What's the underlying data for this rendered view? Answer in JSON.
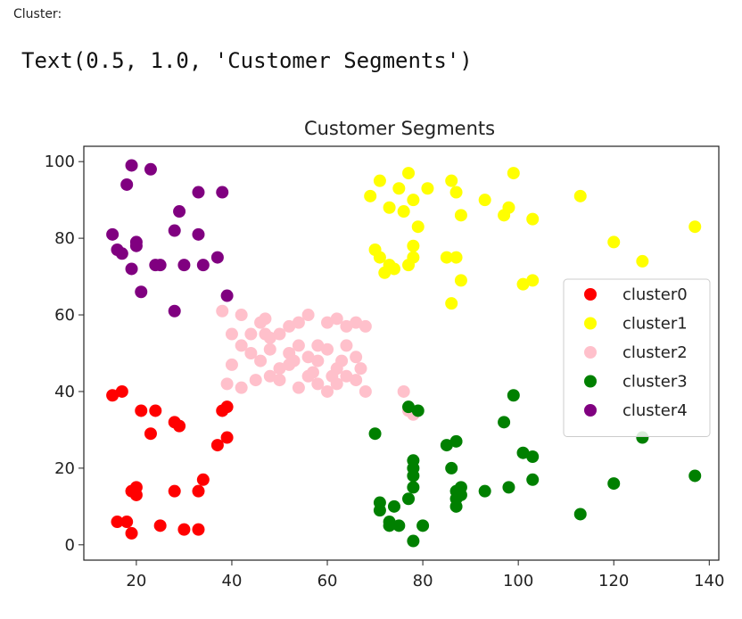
{
  "notebook": {
    "cell_label": "Cluster:",
    "output_text": "Text(0.5, 1.0, 'Customer Segments')"
  },
  "chart_data": {
    "type": "scatter",
    "title": "Customer Segments",
    "xlabel": "",
    "ylabel": "",
    "xlim": [
      9,
      142
    ],
    "ylim": [
      -4,
      104
    ],
    "xticks": [
      20,
      40,
      60,
      80,
      100,
      120,
      140
    ],
    "yticks": [
      0,
      20,
      40,
      60,
      80,
      100
    ],
    "grid": false,
    "legend_position": "right",
    "series": [
      {
        "name": "cluster0",
        "color": "#ff0000",
        "points": [
          [
            15,
            39
          ],
          [
            17,
            40
          ],
          [
            20,
            13
          ],
          [
            20,
            15
          ],
          [
            19,
            14
          ],
          [
            21,
            35
          ],
          [
            24,
            35
          ],
          [
            23,
            29
          ],
          [
            28,
            32
          ],
          [
            29,
            31
          ],
          [
            28,
            14
          ],
          [
            16,
            6
          ],
          [
            18,
            6
          ],
          [
            19,
            3
          ],
          [
            25,
            5
          ],
          [
            30,
            4
          ],
          [
            33,
            4
          ],
          [
            33,
            14
          ],
          [
            34,
            17
          ],
          [
            37,
            26
          ],
          [
            39,
            28
          ],
          [
            38,
            35
          ],
          [
            39,
            36
          ]
        ]
      },
      {
        "name": "cluster1",
        "color": "#ffff00",
        "points": [
          [
            69,
            91
          ],
          [
            71,
            95
          ],
          [
            73,
            88
          ],
          [
            75,
            93
          ],
          [
            77,
            97
          ],
          [
            76,
            87
          ],
          [
            78,
            90
          ],
          [
            79,
            83
          ],
          [
            81,
            93
          ],
          [
            86,
            95
          ],
          [
            87,
            92
          ],
          [
            88,
            86
          ],
          [
            93,
            90
          ],
          [
            97,
            86
          ],
          [
            98,
            88
          ],
          [
            99,
            97
          ],
          [
            103,
            85
          ],
          [
            113,
            91
          ],
          [
            70,
            77
          ],
          [
            71,
            75
          ],
          [
            72,
            71
          ],
          [
            73,
            73
          ],
          [
            74,
            72
          ],
          [
            77,
            73
          ],
          [
            78,
            75
          ],
          [
            78,
            78
          ],
          [
            85,
            75
          ],
          [
            87,
            75
          ],
          [
            86,
            63
          ],
          [
            88,
            69
          ],
          [
            101,
            68
          ],
          [
            103,
            69
          ],
          [
            120,
            79
          ],
          [
            126,
            74
          ],
          [
            137,
            83
          ]
        ]
      },
      {
        "name": "cluster2",
        "color": "#ffc0cb",
        "points": [
          [
            38,
            61
          ],
          [
            40,
            55
          ],
          [
            42,
            60
          ],
          [
            44,
            55
          ],
          [
            46,
            58
          ],
          [
            47,
            59
          ],
          [
            48,
            54
          ],
          [
            50,
            55
          ],
          [
            52,
            57
          ],
          [
            54,
            58
          ],
          [
            56,
            60
          ],
          [
            58,
            52
          ],
          [
            60,
            58
          ],
          [
            62,
            59
          ],
          [
            64,
            57
          ],
          [
            66,
            58
          ],
          [
            68,
            57
          ],
          [
            40,
            47
          ],
          [
            42,
            52
          ],
          [
            44,
            50
          ],
          [
            46,
            48
          ],
          [
            48,
            51
          ],
          [
            50,
            46
          ],
          [
            52,
            50
          ],
          [
            54,
            52
          ],
          [
            56,
            49
          ],
          [
            58,
            48
          ],
          [
            60,
            51
          ],
          [
            62,
            46
          ],
          [
            64,
            52
          ],
          [
            66,
            49
          ],
          [
            39,
            42
          ],
          [
            42,
            41
          ],
          [
            45,
            43
          ],
          [
            48,
            44
          ],
          [
            50,
            43
          ],
          [
            52,
            47
          ],
          [
            54,
            41
          ],
          [
            56,
            44
          ],
          [
            58,
            42
          ],
          [
            60,
            40
          ],
          [
            62,
            42
          ],
          [
            64,
            44
          ],
          [
            66,
            43
          ],
          [
            68,
            40
          ],
          [
            47,
            55
          ],
          [
            53,
            48
          ],
          [
            57,
            45
          ],
          [
            61,
            44
          ],
          [
            63,
            48
          ],
          [
            67,
            46
          ],
          [
            76,
            40
          ],
          [
            77,
            35
          ],
          [
            78,
            34
          ]
        ]
      },
      {
        "name": "cluster3",
        "color": "#008000",
        "points": [
          [
            77,
            36
          ],
          [
            79,
            35
          ],
          [
            70,
            29
          ],
          [
            71,
            11
          ],
          [
            71,
            9
          ],
          [
            73,
            6
          ],
          [
            74,
            10
          ],
          [
            73,
            5
          ],
          [
            75,
            5
          ],
          [
            77,
            12
          ],
          [
            78,
            15
          ],
          [
            78,
            20
          ],
          [
            78,
            22
          ],
          [
            78,
            18
          ],
          [
            78,
            1
          ],
          [
            80,
            5
          ],
          [
            85,
            26
          ],
          [
            87,
            27
          ],
          [
            86,
            20
          ],
          [
            87,
            14
          ],
          [
            87,
            12
          ],
          [
            88,
            15
          ],
          [
            87,
            10
          ],
          [
            88,
            13
          ],
          [
            93,
            14
          ],
          [
            97,
            32
          ],
          [
            98,
            15
          ],
          [
            99,
            39
          ],
          [
            101,
            24
          ],
          [
            103,
            17
          ],
          [
            103,
            23
          ],
          [
            113,
            8
          ],
          [
            120,
            16
          ],
          [
            126,
            28
          ],
          [
            137,
            18
          ]
        ]
      },
      {
        "name": "cluster4",
        "color": "#800080",
        "points": [
          [
            15,
            81
          ],
          [
            16,
            77
          ],
          [
            17,
            76
          ],
          [
            18,
            94
          ],
          [
            19,
            99
          ],
          [
            19,
            72
          ],
          [
            20,
            79
          ],
          [
            20,
            78
          ],
          [
            21,
            66
          ],
          [
            23,
            98
          ],
          [
            24,
            73
          ],
          [
            25,
            73
          ],
          [
            28,
            82
          ],
          [
            28,
            61
          ],
          [
            29,
            87
          ],
          [
            30,
            73
          ],
          [
            33,
            92
          ],
          [
            33,
            81
          ],
          [
            34,
            73
          ],
          [
            37,
            75
          ],
          [
            38,
            92
          ],
          [
            39,
            65
          ]
        ]
      }
    ]
  }
}
